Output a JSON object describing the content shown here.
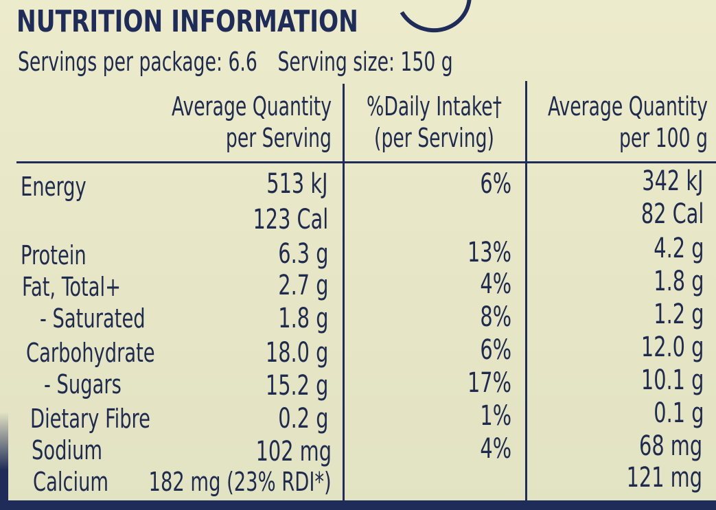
{
  "panel": {
    "title": "NUTRITION INFORMATION",
    "servings_per_package": "Servings per package: 6.6",
    "serving_size": "Serving size: 150 g"
  },
  "headers": {
    "per_serving_line1": "Average Quantity",
    "per_serving_line2": "per Serving",
    "daily_intake_line1": "%Daily Intake†",
    "daily_intake_line2": "(per Serving)",
    "per_100g_line1": "Average Quantity",
    "per_100g_line2": "per 100 g"
  },
  "rows": [
    {
      "nutrient": "Energy",
      "per_serving": "513 kJ",
      "daily_intake": "6%",
      "per_100g": "342 kJ"
    },
    {
      "nutrient": "",
      "per_serving": "123 Cal",
      "daily_intake": "",
      "per_100g": "82 Cal"
    },
    {
      "nutrient": "Protein",
      "per_serving": "6.3 g",
      "daily_intake": "13%",
      "per_100g": "4.2 g"
    },
    {
      "nutrient": "Fat, Total+",
      "per_serving": "2.7 g",
      "daily_intake": "4%",
      "per_100g": "1.8 g"
    },
    {
      "nutrient": " - Saturated",
      "per_serving": "1.8 g",
      "daily_intake": "8%",
      "per_100g": "1.2 g"
    },
    {
      "nutrient": "Carbohydrate",
      "per_serving": "18.0 g",
      "daily_intake": "6%",
      "per_100g": "12.0 g"
    },
    {
      "nutrient": " - Sugars",
      "per_serving": "15.2 g",
      "daily_intake": "17%",
      "per_100g": "10.1 g"
    },
    {
      "nutrient": "Dietary Fibre",
      "per_serving": "0.2 g",
      "daily_intake": "1%",
      "per_100g": "0.1 g"
    },
    {
      "nutrient": "Sodium",
      "per_serving": "102 mg",
      "daily_intake": "4%",
      "per_100g": "68 mg"
    },
    {
      "nutrient": "Calcium",
      "per_serving": "182 mg (23% RDI*)",
      "daily_intake": "",
      "per_100g": "121 mg"
    }
  ],
  "colors": {
    "ink": "#1f2b58",
    "background": "#e9e9c8"
  }
}
